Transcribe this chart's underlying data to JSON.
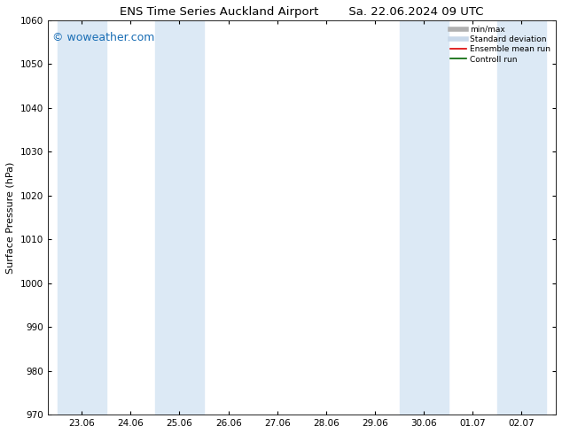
{
  "title_left": "ENS Time Series Auckland Airport",
  "title_right": "Sa. 22.06.2024 09 UTC",
  "ylabel": "Surface Pressure (hPa)",
  "ylim": [
    970,
    1060
  ],
  "yticks": [
    970,
    980,
    990,
    1000,
    1010,
    1020,
    1030,
    1040,
    1050,
    1060
  ],
  "xtick_labels": [
    "23.06",
    "24.06",
    "25.06",
    "26.06",
    "27.06",
    "28.06",
    "29.06",
    "30.06",
    "01.07",
    "02.07"
  ],
  "xtick_positions": [
    0,
    1,
    2,
    3,
    4,
    5,
    6,
    7,
    8,
    9
  ],
  "watermark": "© woweather.com",
  "watermark_color": "#1a6eb5",
  "background_color": "#ffffff",
  "plot_bg_color": "#ffffff",
  "shaded_bands": [
    {
      "x_start": -0.5,
      "x_end": 0.5
    },
    {
      "x_start": 1.5,
      "x_end": 2.5
    },
    {
      "x_start": 6.5,
      "x_end": 7.5
    },
    {
      "x_start": 8.5,
      "x_end": 9.5
    }
  ],
  "shade_color": "#dce9f5",
  "legend_items": [
    {
      "label": "min/max",
      "color": "#b0b0b0",
      "lw": 4,
      "type": "line"
    },
    {
      "label": "Standard deviation",
      "color": "#c8d8ea",
      "lw": 4,
      "type": "line"
    },
    {
      "label": "Ensemble mean run",
      "color": "#dd0000",
      "lw": 1.2,
      "type": "line"
    },
    {
      "label": "Controll run",
      "color": "#006400",
      "lw": 1.2,
      "type": "line"
    }
  ],
  "title_fontsize": 9.5,
  "tick_fontsize": 7.5,
  "ylabel_fontsize": 8,
  "watermark_fontsize": 9,
  "xlim": [
    -0.7,
    9.7
  ]
}
